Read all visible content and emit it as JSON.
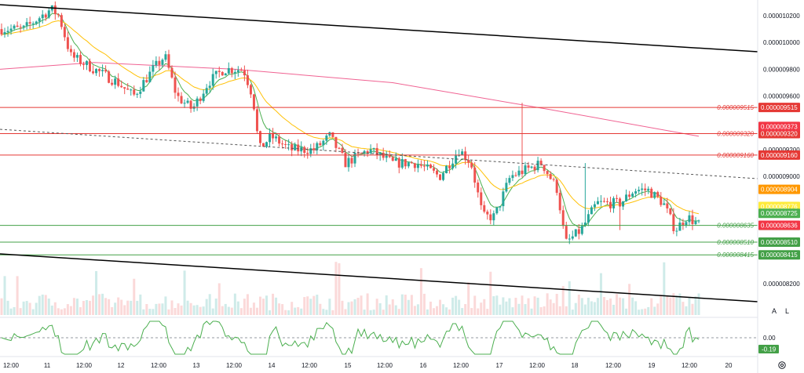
{
  "chart_data": {
    "type": "candlestick",
    "price_axis": {
      "ticks": [
        "0.000010200",
        "0.000010000",
        "0.000009800",
        "0.000009600",
        "0.000009200",
        "0.000009000",
        "0.000008200"
      ],
      "tick_values": [
        1.02e-05,
        1e-05,
        9.8e-06,
        9.6e-06,
        9.2e-06,
        9e-06,
        8.2e-06
      ],
      "range": [
        8.08e-06,
        1.032e-05
      ]
    },
    "time_axis": {
      "ticks": [
        "12:00",
        "11",
        "12:00",
        "12",
        "12:00",
        "13",
        "12:00",
        "14",
        "12:00",
        "15",
        "12:00",
        "16",
        "12:00",
        "17",
        "12:00",
        "18",
        "12:00",
        "19",
        "12:00",
        "20"
      ]
    },
    "levels": {
      "resistance": [
        {
          "label": "0.000009515",
          "tag": "0.000009515",
          "value": 9.515e-06
        },
        {
          "label": "0.000009320",
          "tag": "0.000009320",
          "value": 9.32e-06
        },
        {
          "label": "0.000009160",
          "tag": "0.000009160",
          "value": 9.16e-06
        }
      ],
      "support": [
        {
          "label": "0.000008635",
          "tag": "0.000008635",
          "value": 8.635e-06
        },
        {
          "label": "0.000008510",
          "tag": "0.000008510",
          "value": 8.51e-06
        },
        {
          "label": "0.000008415",
          "tag": "0.000008415",
          "value": 8.415e-06
        }
      ]
    },
    "price_tags": [
      {
        "text": "0.000009373",
        "value": 9.373e-06,
        "color": "#f23645"
      },
      {
        "text": "0.000008904",
        "value": 8.904e-06,
        "color": "#ff9800"
      },
      {
        "text": "0.000008776",
        "value": 8.776e-06,
        "color": "#ffeb3b"
      },
      {
        "text": "0.000008725",
        "value": 8.725e-06,
        "color": "#4caf50"
      },
      {
        "text": "0.000008636",
        "value": 8.636e-06,
        "color": "#f23645"
      }
    ],
    "indicator": {
      "zero_label": "0.00",
      "current_label": "-0.19"
    },
    "colors": {
      "up": "#26a69a",
      "down": "#ef5350",
      "resistance": "#e53935",
      "support": "#43a047",
      "ema_short": "#4caf50",
      "ema_mid": "#ffc107",
      "ema_long": "#f06292",
      "trend": "#000000"
    }
  },
  "toolbar": {
    "auto_label": "A",
    "log_label": "L"
  },
  "icons": {
    "settings": "gear-icon"
  }
}
